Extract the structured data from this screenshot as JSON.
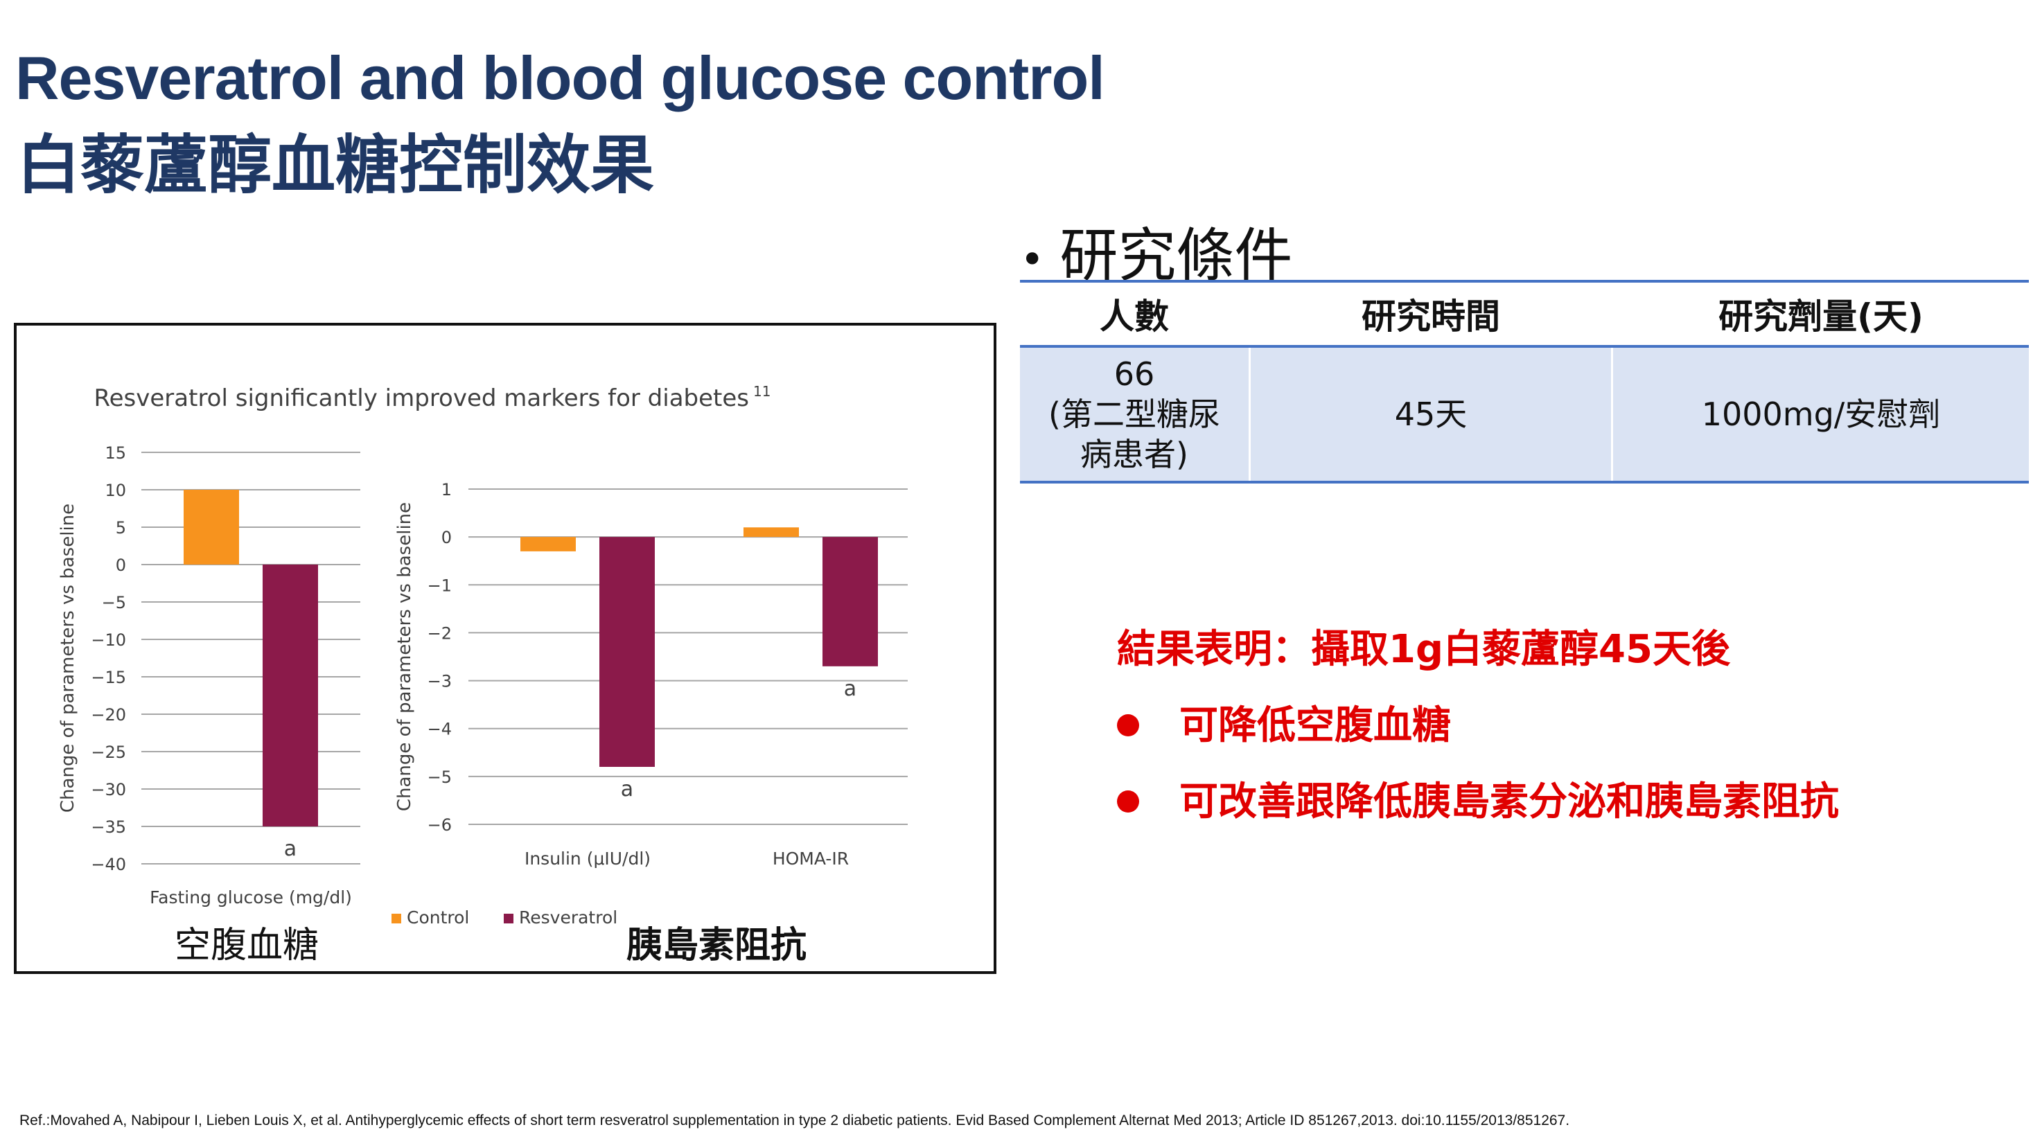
{
  "slide": {
    "title_en": "Resveratrol and blood glucose control",
    "title_zh": "白藜蘆醇血糖控制效果"
  },
  "conditions": {
    "heading": "研究條件",
    "bullet": "•",
    "headers": [
      "人數",
      "研究時間",
      "研究劑量(天)"
    ],
    "row": {
      "participants_line1": "66",
      "participants_line2": "(第二型糖尿",
      "participants_line3": "病患者)",
      "duration": "45天",
      "dose": "1000mg/安慰劑"
    }
  },
  "chart_data": [
    {
      "type": "bar",
      "title": "Resveratrol significantly improved markers for diabetes",
      "title_superscript": "11",
      "categories": [
        "Fasting glucose (mg/dl)"
      ],
      "series": [
        {
          "name": "Control",
          "values": [
            10
          ]
        },
        {
          "name": "Resveratrol",
          "values": [
            -35
          ]
        }
      ],
      "annotations": [
        {
          "series": "Resveratrol",
          "category": "Fasting glucose (mg/dl)",
          "text": "a"
        }
      ],
      "ylabel": "Change of parameters vs baseline",
      "ylim": [
        -40,
        15
      ],
      "yticks": [
        "15",
        "10",
        "5",
        "0",
        "−5",
        "−10",
        "−15",
        "−20",
        "−25",
        "−30",
        "−35",
        "−40"
      ],
      "grid": true,
      "caption": "空腹血糖"
    },
    {
      "type": "bar",
      "categories": [
        "Insulin (μIU/dl)",
        "HOMA-IR"
      ],
      "series": [
        {
          "name": "Control",
          "values": [
            -0.3,
            0.2
          ]
        },
        {
          "name": "Resveratrol",
          "values": [
            -4.8,
            -2.7
          ]
        }
      ],
      "annotations": [
        {
          "series": "Resveratrol",
          "category": "Insulin (μIU/dl)",
          "text": "a"
        },
        {
          "series": "Resveratrol",
          "category": "HOMA-IR",
          "text": "a"
        }
      ],
      "ylabel": "Change of parameters vs baseline",
      "ylim": [
        -6,
        1
      ],
      "yticks": [
        "1",
        "0",
        "−1",
        "−2",
        "−3",
        "−4",
        "−5",
        "−6"
      ],
      "grid": true,
      "caption": "胰島素阻抗"
    }
  ],
  "legend": {
    "position": "bottom",
    "items": [
      {
        "name": "Control",
        "color": "#f7931e"
      },
      {
        "name": "Resveratrol",
        "color": "#8b1a4a"
      }
    ]
  },
  "results": {
    "summary": "結果表明：攝取1g白藜蘆醇45天後",
    "points": [
      "可降低空腹血糖",
      "可改善跟降低胰島素分泌和胰島素阻抗"
    ]
  },
  "reference": "Ref.:Movahed A, Nabipour I, Lieben Louis X, et al. Antihyperglycemic effects of short term resveratrol supplementation in type 2 diabetic patients. Evid Based Complement Alternat Med 2013; Article ID 851267,2013. doi:10.1155/2013/851267.",
  "colors": {
    "title": "#1f3864",
    "table_border": "#4472c4",
    "table_fill": "#dae3f3",
    "result_text": "#e00000"
  }
}
